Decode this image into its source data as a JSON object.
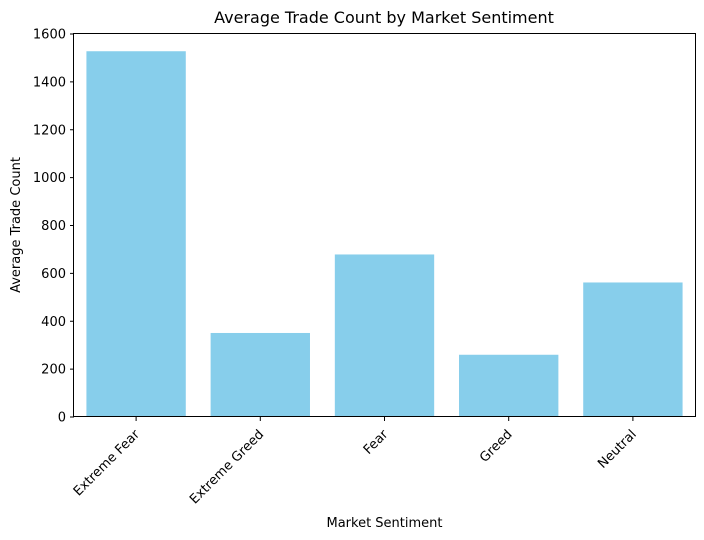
{
  "chart_data": {
    "type": "bar",
    "title": "Average Trade Count by Market Sentiment",
    "xlabel": "Market Sentiment",
    "ylabel": "Average Trade Count",
    "categories": [
      "Extreme Fear",
      "Extreme Greed",
      "Fear",
      "Greed",
      "Neutral"
    ],
    "values": [
      1528,
      351,
      679,
      260,
      562
    ],
    "ylim": [
      0,
      1600
    ],
    "yticks": [
      0,
      200,
      400,
      600,
      800,
      1000,
      1200,
      1400,
      1600
    ],
    "bar_color": "#87CEEB",
    "grid": false,
    "xtick_rotation_deg": 45
  }
}
